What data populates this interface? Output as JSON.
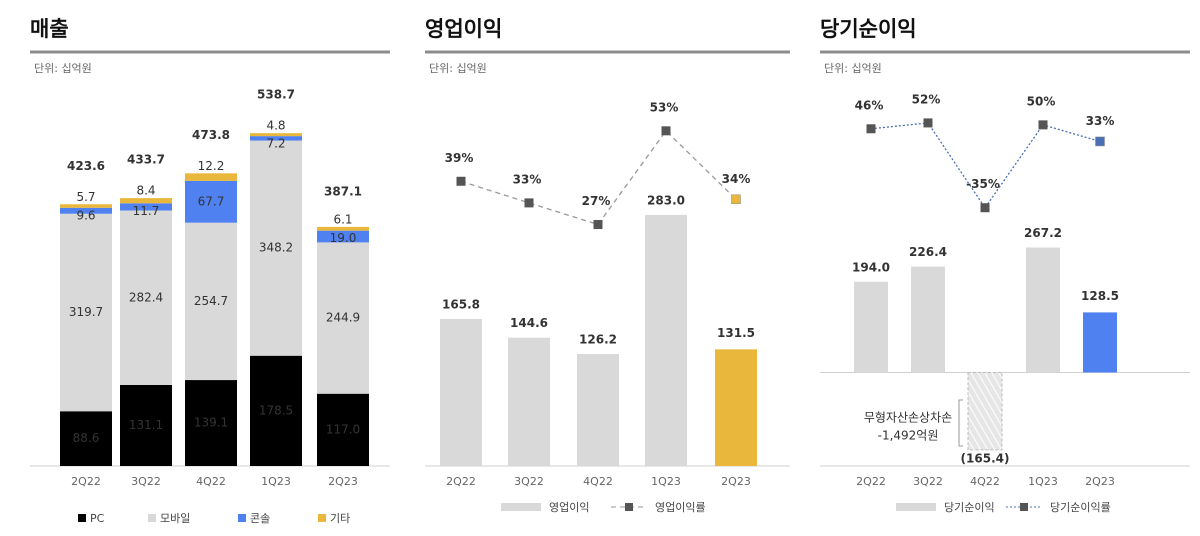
{
  "chart_data": [
    {
      "type": "stacked_bar",
      "title": "매출",
      "subtitle": "단위: 십억원",
      "categories": [
        "2Q22",
        "3Q22",
        "4Q22",
        "1Q23",
        "2Q23"
      ],
      "series": [
        {
          "name": "PC",
          "color": "#000000",
          "values": [
            88.6,
            131.1,
            139.1,
            178.5,
            117.0
          ],
          "value_labels": [
            "88.6",
            "131.1",
            "139.1",
            "178.5",
            "117.0"
          ]
        },
        {
          "name": "모바일",
          "color": "#d9d9d9",
          "values": [
            319.7,
            282.4,
            254.7,
            348.2,
            244.9
          ],
          "value_labels": [
            "319.7",
            "282.4",
            "254.7",
            "348.2",
            "244.9"
          ]
        },
        {
          "name": "콘솔",
          "color": "#4f81f0",
          "values": [
            9.6,
            11.7,
            67.7,
            7.2,
            19.0
          ],
          "value_labels": [
            "9.6",
            "11.7",
            "67.7",
            "7.2",
            "19.0"
          ]
        },
        {
          "name": "기타",
          "color": "#e8b73b",
          "values": [
            5.7,
            8.4,
            12.2,
            4.8,
            6.1
          ],
          "value_labels": [
            "5.7",
            "8.4",
            "12.2",
            "4.8",
            "6.1"
          ]
        }
      ],
      "totals": [
        423.6,
        433.7,
        473.8,
        538.7,
        387.1
      ],
      "ylim": [
        0,
        560
      ]
    },
    {
      "type": "bar_line",
      "title": "영업이익",
      "subtitle": "단위: 십억원",
      "categories": [
        "2Q22",
        "3Q22",
        "4Q22",
        "1Q23",
        "2Q23"
      ],
      "series": [
        {
          "name": "영업이익",
          "type": "bar",
          "colors": [
            "#d9d9d9",
            "#d9d9d9",
            "#d9d9d9",
            "#d9d9d9",
            "#e8b73b"
          ],
          "values": [
            165.8,
            144.6,
            126.2,
            283.0,
            131.5
          ],
          "value_labels": [
            "165.8",
            "144.6",
            "126.2",
            "283.0",
            "131.5"
          ]
        },
        {
          "name": "영업이익률",
          "type": "line",
          "axis": "y2",
          "color": "#999999",
          "line_style": "dashed",
          "marker_colors": [
            "#555555",
            "#555555",
            "#555555",
            "#555555",
            "#e8b73b"
          ],
          "values": [
            39,
            33,
            27,
            53,
            34
          ],
          "value_labels": [
            "39%",
            "33%",
            "27%",
            "53%",
            "34%"
          ]
        }
      ],
      "ylim": [
        0,
        390
      ],
      "y2lim": [
        -40,
        56
      ]
    },
    {
      "type": "bar_line",
      "title": "당기순이익",
      "subtitle": "단위: 십억원",
      "categories": [
        "2Q22",
        "3Q22",
        "4Q22",
        "1Q23",
        "2Q23"
      ],
      "series": [
        {
          "name": "당기순이익",
          "type": "bar",
          "colors": [
            "#d9d9d9",
            "#d9d9d9",
            "#d9d9d9",
            "#d9d9d9",
            "#4f81f0"
          ],
          "values": [
            194.0,
            226.4,
            -165.4,
            267.2,
            128.5
          ],
          "value_labels": [
            "194.0",
            "226.4",
            "(165.4)",
            "267.2",
            "128.5"
          ]
        },
        {
          "name": "당기순이익률",
          "type": "line",
          "axis": "y2",
          "color": "#4a6fb5",
          "line_style": "dotted",
          "marker_colors": [
            "#555555",
            "#555555",
            "#555555",
            "#555555",
            "#4a6fb5"
          ],
          "values": [
            46,
            52,
            -35,
            50,
            33
          ],
          "value_labels": [
            "46%",
            "52%",
            "-35%",
            "50%",
            "33%"
          ]
        }
      ],
      "annotation": [
        "무형자산손상차손",
        "-1,492억원"
      ],
      "ylim": [
        -200,
        540
      ],
      "y2lim": [
        -300,
        55
      ]
    }
  ]
}
